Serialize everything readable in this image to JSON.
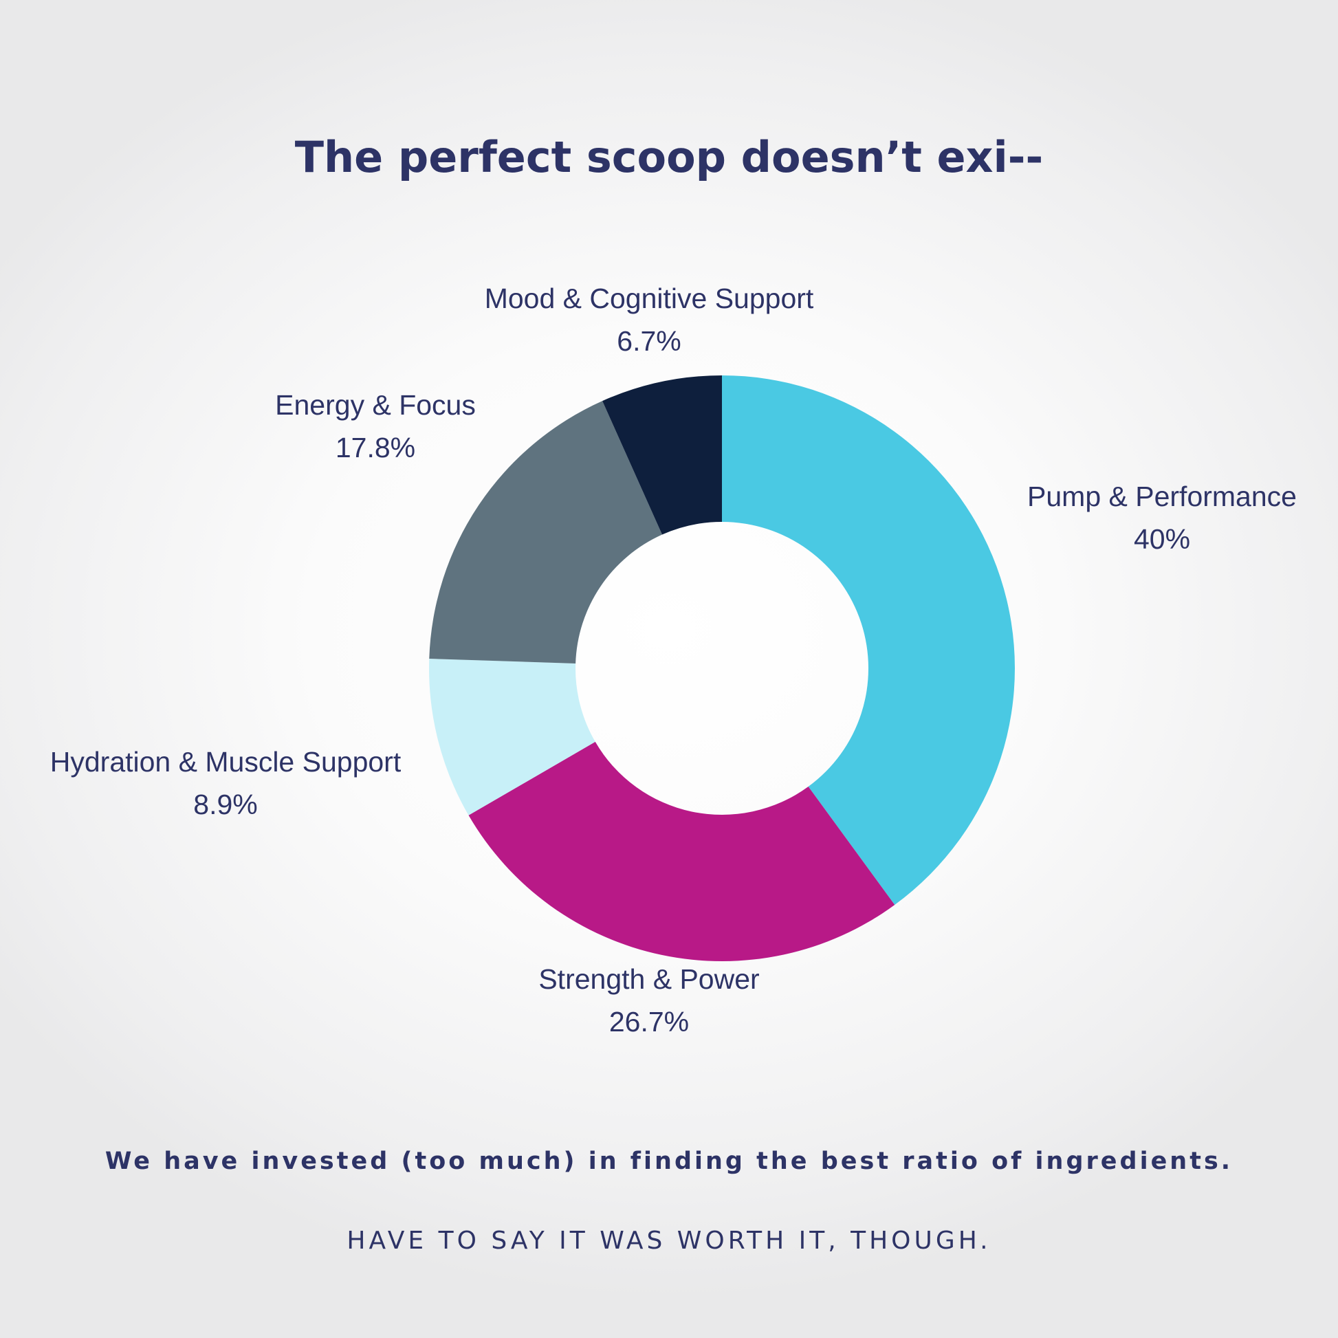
{
  "heading": "The perfect scoop doesn’t exi--",
  "tagline": "We have invested (too much) in finding the best ratio of ingredients.",
  "subline": "HAVE TO SAY IT WAS WORTH IT, THOUGH.",
  "text_color": "#2d3366",
  "chart_data": {
    "type": "pie",
    "variant": "donut",
    "categories": [
      "Pump & Performance",
      "Strength & Power",
      "Hydration & Muscle Support",
      "Energy & Focus",
      "Mood & Cognitive Support"
    ],
    "values": [
      40,
      26.7,
      8.9,
      17.8,
      6.7
    ],
    "value_labels": [
      "40%",
      "26.7%",
      "8.9%",
      "17.8%",
      "6.7%"
    ],
    "colors": [
      "#4ac9e3",
      "#b81987",
      "#c8f0f8",
      "#5f737f",
      "#0e1f3d"
    ],
    "title": "The perfect scoop doesn’t exi--",
    "legend": "none",
    "start": "top, clockwise"
  }
}
